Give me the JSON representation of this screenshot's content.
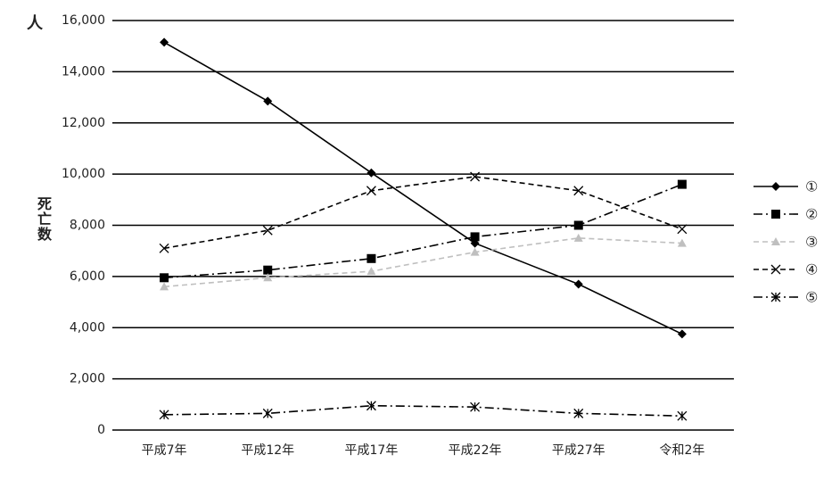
{
  "chart_data": {
    "type": "line",
    "y_unit": "人",
    "y_label": "死亡数",
    "categories": [
      "平成7年",
      "平成12年",
      "平成17年",
      "平成22年",
      "平成27年",
      "令和2年"
    ],
    "series": [
      {
        "name": "①",
        "color": "#000000",
        "dash": "solid",
        "marker": "diamond",
        "values": [
          15150,
          12850,
          10050,
          7300,
          5700,
          3750
        ]
      },
      {
        "name": "②",
        "color": "#000000",
        "dash": "dashdot",
        "marker": "square",
        "values": [
          5950,
          6250,
          6700,
          7550,
          8000,
          9600
        ]
      },
      {
        "name": "③",
        "color": "#bfbfbf",
        "dash": "dashed",
        "marker": "triangle",
        "values": [
          5600,
          5950,
          6200,
          6950,
          7500,
          7300
        ]
      },
      {
        "name": "④",
        "color": "#000000",
        "dash": "dashed",
        "marker": "x",
        "values": [
          7100,
          7800,
          9350,
          9900,
          9350,
          7850
        ]
      },
      {
        "name": "⑤",
        "color": "#000000",
        "dash": "dashdot",
        "marker": "star",
        "values": [
          600,
          650,
          950,
          900,
          650,
          550
        ]
      }
    ],
    "ylim": [
      0,
      16000
    ],
    "yticks": [
      0,
      {
        "value": 2000,
        "label": "2,000"
      },
      {
        "value": 4000,
        "label": "4,000"
      },
      {
        "value": 6000,
        "label": "6,000"
      },
      {
        "value": 8000,
        "label": "8,000"
      },
      {
        "value": 10000,
        "label": "10,000"
      },
      {
        "value": 12000,
        "label": "12,000"
      },
      {
        "value": 14000,
        "label": "14,000"
      },
      {
        "value": 16000,
        "label": "16,000"
      }
    ],
    "grid": true,
    "legend": "right"
  }
}
